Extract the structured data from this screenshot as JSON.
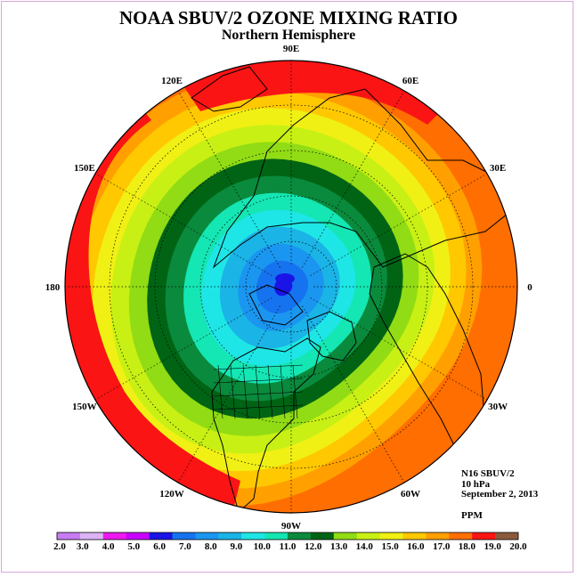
{
  "header": {
    "title": "NOAA SBUV/2 OZONE MIXING RATIO",
    "subtitle": "Northern Hemisphere"
  },
  "info": {
    "instrument": "N16 SBUV/2",
    "level": "10 hPa",
    "date": "September 2, 2013",
    "units": "PPM"
  },
  "longitude_labels": [
    {
      "text": "90E",
      "lon": 90
    },
    {
      "text": "60E",
      "lon": 60
    },
    {
      "text": "30E",
      "lon": 30
    },
    {
      "text": "0",
      "lon": 0
    },
    {
      "text": "30W",
      "lon": -30
    },
    {
      "text": "60W",
      "lon": -60
    },
    {
      "text": "90W",
      "lon": -90
    },
    {
      "text": "120W",
      "lon": -120
    },
    {
      "text": "150W",
      "lon": -150
    },
    {
      "text": "180",
      "lon": 180
    },
    {
      "text": "150E",
      "lon": 150
    },
    {
      "text": "120E",
      "lon": 120
    }
  ],
  "colorbar": {
    "ticks": [
      "2.0",
      "3.0",
      "4.0",
      "5.0",
      "6.0",
      "7.0",
      "8.0",
      "9.0",
      "10.0",
      "11.0",
      "12.0",
      "13.0",
      "14.0",
      "15.0",
      "16.0",
      "17.0",
      "18.0",
      "19.0",
      "20.0"
    ],
    "colors": [
      "#c77cf2",
      "#dcb4f5",
      "#ee19ee",
      "#c800ff",
      "#1a14e6",
      "#1673f0",
      "#1a96f0",
      "#1ab4e6",
      "#1ee6e6",
      "#14e6b4",
      "#0a8a3c",
      "#006414",
      "#91dc14",
      "#c8f014",
      "#f0f014",
      "#ffc800",
      "#ffa000",
      "#ff6e00",
      "#fa1414",
      "#8b5a3c"
    ]
  },
  "map_data": {
    "projection": "north-polar-stereographic",
    "field": "ozone mixing ratio",
    "units": "PPM",
    "min_value_region": "5-6 near pole",
    "max_value_region": "19-20 at southern edge near 150E-180 and 60E-120E",
    "contour_rings_ppm": [
      6,
      7,
      8,
      9,
      10,
      11,
      12,
      13,
      14,
      15,
      16,
      17,
      18,
      19
    ]
  }
}
